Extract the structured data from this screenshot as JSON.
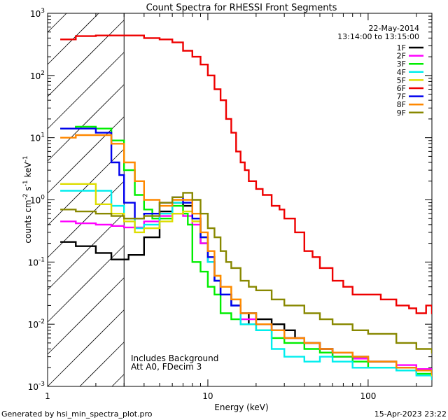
{
  "chart_data": {
    "type": "line",
    "title": "Count Spectra for RHESSI Front Segments",
    "xlabel": "Energy (keV)",
    "ylabel_main": "counts cm",
    "ylabel_sup1": "-2",
    "ylabel_mid": " s",
    "ylabel_sup2": "-1",
    "ylabel_end": " keV",
    "ylabel_sup3": "-1",
    "xscale": "log",
    "yscale": "log",
    "xlim": [
      1,
      250
    ],
    "ylim": [
      0.001,
      1000
    ],
    "x_tick_labels": [
      {
        "value": 1,
        "label": "1"
      },
      {
        "value": 10,
        "label": "10"
      },
      {
        "value": 100,
        "label": "100"
      }
    ],
    "y_tick_labels": [
      {
        "value": 0.001,
        "base": "10",
        "exp": "-3"
      },
      {
        "value": 0.01,
        "base": "10",
        "exp": "-2"
      },
      {
        "value": 0.1,
        "base": "10",
        "exp": "-1"
      },
      {
        "value": 1,
        "base": "10",
        "exp": "0"
      },
      {
        "value": 10,
        "base": "10",
        "exp": "1"
      },
      {
        "value": 100,
        "base": "10",
        "exp": "2"
      },
      {
        "value": 1000,
        "base": "10",
        "exp": "3"
      }
    ],
    "hatched_region_x": [
      1,
      3
    ],
    "date": "22-May-2014",
    "time_range": "13:14:00 to 13:15:00",
    "annotations": [
      "Includes Background",
      "Att A0, FDecim 3"
    ],
    "legend_position": "top-right",
    "series": [
      {
        "name": "1F",
        "color": "#000000",
        "points": [
          [
            1.2,
            0.21
          ],
          [
            1.5,
            0.18
          ],
          [
            2,
            0.14
          ],
          [
            2.5,
            0.11
          ],
          [
            2.8,
            0.11
          ],
          [
            3.2,
            0.13
          ],
          [
            4,
            0.25
          ],
          [
            5,
            0.65
          ],
          [
            6,
            0.9
          ],
          [
            7,
            0.8
          ],
          [
            8,
            0.45
          ],
          [
            9,
            0.2
          ],
          [
            10,
            0.1
          ],
          [
            11,
            0.05
          ],
          [
            12,
            0.03
          ],
          [
            14,
            0.02
          ],
          [
            16,
            0.01
          ],
          [
            18,
            0.015
          ],
          [
            20,
            0.012
          ],
          [
            25,
            0.01
          ],
          [
            30,
            0.008
          ],
          [
            35,
            0.006
          ],
          [
            40,
            0.005
          ],
          [
            50,
            0.004
          ],
          [
            60,
            0.0035
          ],
          [
            80,
            0.003
          ],
          [
            100,
            0.0025
          ],
          [
            150,
            0.002
          ],
          [
            200,
            0.0018
          ],
          [
            250,
            0.0015
          ]
        ]
      },
      {
        "name": "2F",
        "color": "#ff00ff",
        "points": [
          [
            1.2,
            0.45
          ],
          [
            1.5,
            0.42
          ],
          [
            2,
            0.4
          ],
          [
            2.5,
            0.38
          ],
          [
            3,
            0.36
          ],
          [
            4,
            0.45
          ],
          [
            5,
            0.55
          ],
          [
            6,
            0.6
          ],
          [
            7,
            0.55
          ],
          [
            8,
            0.4
          ],
          [
            9,
            0.2
          ],
          [
            10,
            0.1
          ],
          [
            11,
            0.05
          ],
          [
            12,
            0.03
          ],
          [
            14,
            0.02
          ],
          [
            16,
            0.012
          ],
          [
            20,
            0.01
          ],
          [
            25,
            0.008
          ],
          [
            30,
            0.006
          ],
          [
            40,
            0.005
          ],
          [
            50,
            0.004
          ],
          [
            60,
            0.003
          ],
          [
            80,
            0.0028
          ],
          [
            100,
            0.0025
          ],
          [
            150,
            0.0022
          ],
          [
            200,
            0.0019
          ],
          [
            250,
            0.0016
          ]
        ]
      },
      {
        "name": "3F",
        "color": "#00ee00",
        "points": [
          [
            1.2,
            14
          ],
          [
            1.5,
            15
          ],
          [
            2,
            14
          ],
          [
            2.5,
            9
          ],
          [
            3,
            3
          ],
          [
            3.5,
            1.2
          ],
          [
            4,
            0.7
          ],
          [
            4.5,
            0.5
          ],
          [
            5,
            0.5
          ],
          [
            6,
            0.8
          ],
          [
            7,
            0.6
          ],
          [
            7.5,
            0.4
          ],
          [
            8,
            0.1
          ],
          [
            9,
            0.07
          ],
          [
            10,
            0.04
          ],
          [
            11,
            0.03
          ],
          [
            12,
            0.015
          ],
          [
            14,
            0.012
          ],
          [
            16,
            0.01
          ],
          [
            20,
            0.008
          ],
          [
            25,
            0.006
          ],
          [
            30,
            0.005
          ],
          [
            40,
            0.004
          ],
          [
            50,
            0.0035
          ],
          [
            60,
            0.003
          ],
          [
            80,
            0.0025
          ],
          [
            100,
            0.002
          ],
          [
            150,
            0.0018
          ],
          [
            200,
            0.0016
          ],
          [
            250,
            0.0014
          ]
        ]
      },
      {
        "name": "4F",
        "color": "#00eeee",
        "points": [
          [
            1.2,
            1.4
          ],
          [
            1.5,
            1.4
          ],
          [
            2,
            1.4
          ],
          [
            2.5,
            0.8
          ],
          [
            3,
            0.5
          ],
          [
            3.5,
            0.35
          ],
          [
            4,
            0.4
          ],
          [
            5,
            0.6
          ],
          [
            6,
            0.9
          ],
          [
            7,
            0.9
          ],
          [
            8,
            0.5
          ],
          [
            9,
            0.25
          ],
          [
            10,
            0.1
          ],
          [
            11,
            0.05
          ],
          [
            12,
            0.03
          ],
          [
            14,
            0.02
          ],
          [
            16,
            0.01
          ],
          [
            20,
            0.008
          ],
          [
            25,
            0.004
          ],
          [
            30,
            0.003
          ],
          [
            40,
            0.0025
          ],
          [
            50,
            0.003
          ],
          [
            60,
            0.0025
          ],
          [
            80,
            0.002
          ],
          [
            100,
            0.002
          ],
          [
            150,
            0.0018
          ],
          [
            200,
            0.0015
          ],
          [
            250,
            0.0013
          ]
        ]
      },
      {
        "name": "5F",
        "color": "#dddd00",
        "points": [
          [
            1.2,
            1.8
          ],
          [
            1.5,
            1.8
          ],
          [
            2,
            0.85
          ],
          [
            2.5,
            0.6
          ],
          [
            3,
            0.45
          ],
          [
            3.5,
            0.3
          ],
          [
            4,
            0.35
          ],
          [
            5,
            0.45
          ],
          [
            6,
            0.6
          ],
          [
            7,
            0.65
          ],
          [
            8,
            0.45
          ],
          [
            9,
            0.25
          ],
          [
            10,
            0.12
          ],
          [
            11,
            0.06
          ],
          [
            12,
            0.04
          ],
          [
            14,
            0.025
          ],
          [
            16,
            0.015
          ],
          [
            20,
            0.01
          ],
          [
            25,
            0.008
          ],
          [
            30,
            0.006
          ],
          [
            40,
            0.005
          ],
          [
            50,
            0.004
          ],
          [
            60,
            0.0035
          ],
          [
            80,
            0.003
          ],
          [
            100,
            0.0025
          ],
          [
            150,
            0.002
          ],
          [
            200,
            0.0018
          ],
          [
            250,
            0.0015
          ]
        ]
      },
      {
        "name": "6F",
        "color": "#ee0000",
        "points": [
          [
            1.2,
            380
          ],
          [
            1.5,
            430
          ],
          [
            2,
            440
          ],
          [
            2.5,
            440
          ],
          [
            3,
            440
          ],
          [
            4,
            400
          ],
          [
            5,
            380
          ],
          [
            6,
            340
          ],
          [
            7,
            250
          ],
          [
            8,
            200
          ],
          [
            9,
            150
          ],
          [
            10,
            100
          ],
          [
            11,
            60
          ],
          [
            12,
            40
          ],
          [
            13,
            20
          ],
          [
            14,
            12
          ],
          [
            15,
            6
          ],
          [
            16,
            4
          ],
          [
            17,
            3
          ],
          [
            18,
            2
          ],
          [
            20,
            1.5
          ],
          [
            22,
            1.2
          ],
          [
            25,
            0.8
          ],
          [
            28,
            0.7
          ],
          [
            30,
            0.5
          ],
          [
            35,
            0.3
          ],
          [
            40,
            0.15
          ],
          [
            45,
            0.12
          ],
          [
            50,
            0.08
          ],
          [
            60,
            0.05
          ],
          [
            70,
            0.04
          ],
          [
            80,
            0.03
          ],
          [
            100,
            0.03
          ],
          [
            120,
            0.025
          ],
          [
            150,
            0.02
          ],
          [
            180,
            0.018
          ],
          [
            200,
            0.015
          ],
          [
            230,
            0.02
          ],
          [
            250,
            0.015
          ]
        ]
      },
      {
        "name": "7F",
        "color": "#0000ee",
        "points": [
          [
            1.2,
            14
          ],
          [
            1.5,
            14
          ],
          [
            2,
            12
          ],
          [
            2.5,
            4
          ],
          [
            2.8,
            2.5
          ],
          [
            3,
            0.9
          ],
          [
            3.5,
            0.5
          ],
          [
            4,
            0.6
          ],
          [
            5,
            0.9
          ],
          [
            6,
            1.1
          ],
          [
            7,
            0.9
          ],
          [
            8,
            0.5
          ],
          [
            9,
            0.25
          ],
          [
            10,
            0.12
          ],
          [
            11,
            0.05
          ],
          [
            12,
            0.03
          ],
          [
            14,
            0.02
          ],
          [
            16,
            0.015
          ],
          [
            20,
            0.01
          ],
          [
            25,
            0.008
          ],
          [
            30,
            0.006
          ],
          [
            40,
            0.005
          ],
          [
            50,
            0.004
          ],
          [
            60,
            0.0035
          ],
          [
            80,
            0.003
          ],
          [
            100,
            0.0025
          ],
          [
            150,
            0.002
          ],
          [
            200,
            0.0018
          ],
          [
            250,
            0.0016
          ]
        ]
      },
      {
        "name": "8F",
        "color": "#ff8800",
        "points": [
          [
            1.2,
            10
          ],
          [
            1.5,
            11
          ],
          [
            2,
            11
          ],
          [
            2.5,
            8
          ],
          [
            3,
            4
          ],
          [
            3.5,
            2
          ],
          [
            4,
            1
          ],
          [
            5,
            0.8
          ],
          [
            6,
            1.0
          ],
          [
            7,
            1.0
          ],
          [
            8,
            0.6
          ],
          [
            9,
            0.3
          ],
          [
            10,
            0.15
          ],
          [
            11,
            0.06
          ],
          [
            12,
            0.04
          ],
          [
            14,
            0.025
          ],
          [
            16,
            0.015
          ],
          [
            20,
            0.01
          ],
          [
            25,
            0.008
          ],
          [
            30,
            0.006
          ],
          [
            40,
            0.005
          ],
          [
            50,
            0.004
          ],
          [
            60,
            0.0035
          ],
          [
            80,
            0.003
          ],
          [
            100,
            0.0025
          ],
          [
            150,
            0.002
          ],
          [
            200,
            0.0018
          ],
          [
            250,
            0.0016
          ]
        ]
      },
      {
        "name": "9F",
        "color": "#888800",
        "points": [
          [
            1.2,
            0.7
          ],
          [
            1.5,
            0.65
          ],
          [
            2,
            0.6
          ],
          [
            2.5,
            0.55
          ],
          [
            3,
            0.5
          ],
          [
            4,
            0.55
          ],
          [
            5,
            0.9
          ],
          [
            6,
            1.1
          ],
          [
            7,
            1.3
          ],
          [
            8,
            1.0
          ],
          [
            9,
            0.6
          ],
          [
            10,
            0.35
          ],
          [
            11,
            0.25
          ],
          [
            12,
            0.15
          ],
          [
            13,
            0.1
          ],
          [
            14,
            0.08
          ],
          [
            16,
            0.05
          ],
          [
            18,
            0.04
          ],
          [
            20,
            0.035
          ],
          [
            25,
            0.025
          ],
          [
            30,
            0.02
          ],
          [
            40,
            0.015
          ],
          [
            50,
            0.012
          ],
          [
            60,
            0.01
          ],
          [
            80,
            0.008
          ],
          [
            100,
            0.007
          ],
          [
            150,
            0.005
          ],
          [
            200,
            0.004
          ],
          [
            250,
            0.0035
          ]
        ]
      }
    ]
  },
  "footer": {
    "generated_by": "Generated by hsi_min_spectra_plot.pro",
    "timestamp": "15-Apr-2023 23:22"
  }
}
